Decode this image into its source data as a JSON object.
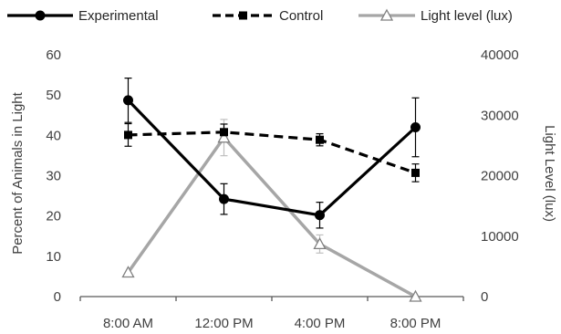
{
  "chart_data": {
    "type": "line",
    "categories": [
      "8:00 AM",
      "12:00 PM",
      "4:00 PM",
      "8:00 PM"
    ],
    "ylabel": "Percent of Animals in Light",
    "y2label": "Light Level (lux)",
    "ylim": [
      0,
      60
    ],
    "y2lim": [
      0,
      40000
    ],
    "yticks": [
      "0",
      "10",
      "20",
      "30",
      "40",
      "50",
      "60"
    ],
    "y2ticks": [
      "0",
      "10000",
      "20000",
      "30000",
      "40000"
    ],
    "legend_position": "top",
    "series": [
      {
        "name": "Experimental",
        "axis": "left",
        "values": [
          48.7,
          24.2,
          20.2,
          42.0
        ],
        "error": [
          5.5,
          3.8,
          3.2,
          7.3
        ],
        "color": "#000000",
        "dash": "solid",
        "marker": "circle"
      },
      {
        "name": "Control",
        "axis": "left",
        "values": [
          40.1,
          40.8,
          38.9,
          30.7
        ],
        "error": [
          2.8,
          2.0,
          1.5,
          2.2
        ],
        "color": "#000000",
        "dash": "dashed",
        "marker": "square"
      },
      {
        "name": "Light level (lux)",
        "axis": "right",
        "values": [
          4000,
          26300,
          8700,
          0
        ],
        "error": [
          null,
          3000,
          1500,
          null
        ],
        "color": "#a6a6a6",
        "dash": "solid",
        "marker": "triangle"
      }
    ]
  }
}
